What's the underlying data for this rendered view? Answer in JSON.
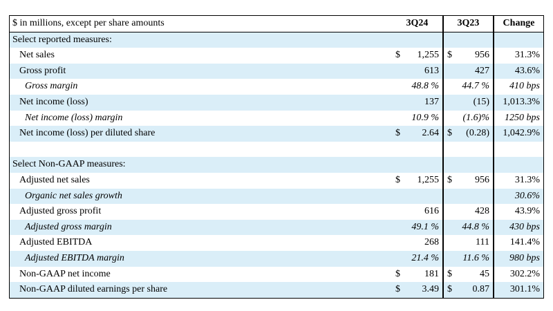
{
  "table": {
    "columns": [
      "$ in millions, except per share amounts",
      "3Q24",
      "3Q23",
      "Change"
    ],
    "sections": [
      {
        "title": "Select reported measures:",
        "rows": [
          {
            "label": "Net sales",
            "italic": false,
            "cells": [
              {
                "sign": "$",
                "amount": "1,255"
              },
              {
                "sign": "$",
                "amount": "956"
              },
              "31.3%"
            ]
          },
          {
            "label": "Gross profit",
            "italic": false,
            "cells": [
              "613",
              "427",
              "43.6%"
            ]
          },
          {
            "label": "Gross margin",
            "italic": true,
            "cells": [
              "48.8 %",
              "44.7 %",
              "410 bps"
            ]
          },
          {
            "label": "Net income (loss)",
            "italic": false,
            "cells": [
              "137",
              "(15)",
              "1,013.3%"
            ]
          },
          {
            "label": "Net income (loss) margin",
            "italic": true,
            "cells": [
              "10.9 %",
              "(1.6)%",
              "1250 bps"
            ]
          },
          {
            "label": "Net income (loss) per diluted share",
            "italic": false,
            "cells": [
              {
                "sign": "$",
                "amount": "2.64"
              },
              {
                "sign": "$",
                "amount": "(0.28)"
              },
              "1,042.9%"
            ]
          }
        ]
      },
      {
        "title": "Select Non-GAAP measures:",
        "rows": [
          {
            "label": "Adjusted net sales",
            "italic": false,
            "cells": [
              {
                "sign": "$",
                "amount": "1,255"
              },
              {
                "sign": "$",
                "amount": "956"
              },
              "31.3%"
            ]
          },
          {
            "label": "Organic net sales growth",
            "italic": true,
            "cells": [
              null,
              null,
              "30.6%"
            ]
          },
          {
            "label": "Adjusted gross profit",
            "italic": false,
            "cells": [
              "616",
              "428",
              "43.9%"
            ]
          },
          {
            "label": "Adjusted gross margin",
            "italic": true,
            "cells": [
              "49.1 %",
              "44.8 %",
              "430 bps"
            ]
          },
          {
            "label": "Adjusted EBITDA",
            "italic": false,
            "cells": [
              "268",
              "111",
              "141.4%"
            ]
          },
          {
            "label": "Adjusted EBITDA margin",
            "italic": true,
            "cells": [
              "21.4 %",
              "11.6 %",
              "980 bps"
            ]
          },
          {
            "label": "Non-GAAP net income",
            "italic": false,
            "cells": [
              {
                "sign": "$",
                "amount": "181"
              },
              {
                "sign": "$",
                "amount": "45"
              },
              "302.2%"
            ]
          },
          {
            "label": "Non-GAAP diluted earnings per share",
            "italic": false,
            "cells": [
              {
                "sign": "$",
                "amount": "3.49"
              },
              {
                "sign": "$",
                "amount": "0.87"
              },
              "301.1%"
            ]
          }
        ]
      }
    ]
  }
}
